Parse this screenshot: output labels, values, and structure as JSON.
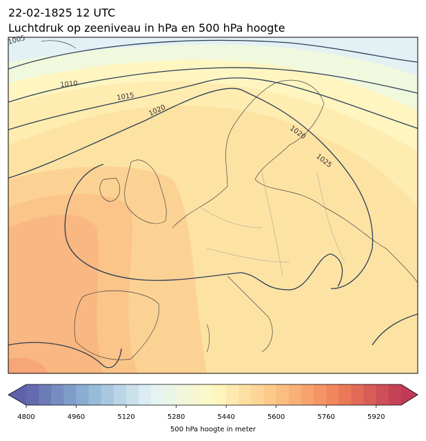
{
  "header": {
    "date": "22-02-1825 12 UTC",
    "title": "Luchtdruk op zeeniveau in hPa en 500 hPa hoogte"
  },
  "colorbar": {
    "label": "500 hPa hoogte in meter",
    "range": [
      4800,
      6000
    ],
    "ticks": [
      4800,
      4960,
      5120,
      5280,
      5440,
      5600,
      5760,
      5920
    ],
    "colors": [
      "#5e62ab",
      "#8fb6d6",
      "#e3f3f6",
      "#fef9c3",
      "#fdc583",
      "#f08058",
      "#c03a56"
    ]
  },
  "contours": [
    {
      "label": "1005"
    },
    {
      "label": "1010"
    },
    {
      "label": "1015"
    },
    {
      "label": "1020"
    },
    {
      "label": "1020"
    },
    {
      "label": "1025"
    }
  ]
}
